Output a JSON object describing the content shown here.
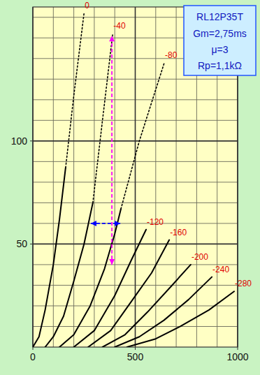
{
  "chart_data": {
    "type": "line",
    "title": "RL12P35T",
    "subtitle": [
      "Gm=2,75ms",
      "μ=3",
      "Rp=1,1kΩ"
    ],
    "xlim": [
      0,
      1000
    ],
    "ylim": [
      0,
      165
    ],
    "xticks": [
      0,
      500,
      1000
    ],
    "yticks": [
      50,
      100
    ],
    "x_minor_ticks": [
      100,
      200,
      300,
      400,
      600,
      700,
      800,
      900
    ],
    "y_minor_ticks": [
      10,
      20,
      30,
      40,
      60,
      70,
      80,
      90,
      110,
      120,
      130,
      140,
      150,
      160
    ],
    "grid": true,
    "series": [
      {
        "name": "0",
        "color": "#000000",
        "line_style": "solid",
        "x": [
          0,
          30,
          60,
          100,
          130,
          160
        ],
        "values": [
          0,
          5,
          18,
          40,
          62,
          87
        ],
        "extension": {
          "line_style": "dotted",
          "x": [
            160,
            200,
            250
          ],
          "values": [
            87,
            122,
            162
          ]
        }
      },
      {
        "name": "-40",
        "color": "#000000",
        "line_style": "solid",
        "x": [
          60,
          100,
          150,
          200,
          250,
          293
        ],
        "values": [
          0,
          5,
          15,
          32,
          50,
          70
        ],
        "extension": {
          "line_style": "dotted",
          "x": [
            293,
            340,
            390
          ],
          "values": [
            70,
            110,
            152
          ]
        }
      },
      {
        "name": "-80",
        "color": "#000000",
        "line_style": "solid",
        "x": [
          130,
          200,
          280,
          350,
          400,
          430
        ],
        "values": [
          0,
          6,
          20,
          38,
          55,
          67
        ],
        "extension": {
          "line_style": "dotted",
          "x": [
            430,
            520,
            642
          ],
          "values": [
            67,
            100,
            138
          ]
        }
      },
      {
        "name": "-120",
        "color": "#000000",
        "line_style": "solid",
        "x": [
          200,
          300,
          400,
          480,
          553
        ],
        "values": [
          0,
          8,
          25,
          42,
          57
        ]
      },
      {
        "name": "-160",
        "color": "#000000",
        "line_style": "solid",
        "x": [
          270,
          380,
          480,
          580,
          666
        ],
        "values": [
          0,
          8,
          22,
          36,
          52
        ]
      },
      {
        "name": "-200",
        "color": "#000000",
        "line_style": "solid",
        "x": [
          340,
          450,
          560,
          680,
          771
        ],
        "values": [
          0,
          6,
          17,
          30,
          40
        ]
      },
      {
        "name": "-240",
        "color": "#000000",
        "line_style": "solid",
        "x": [
          400,
          520,
          640,
          760,
          874
        ],
        "values": [
          0,
          5,
          13,
          23,
          34
        ]
      },
      {
        "name": "-280",
        "color": "#000000",
        "line_style": "solid",
        "x": [
          460,
          600,
          720,
          860,
          983
        ],
        "values": [
          0,
          4,
          10,
          18,
          27
        ]
      }
    ],
    "annotations": [
      {
        "color": "#ff00ff",
        "line_style": "dashed",
        "x": [
          386,
          386
        ],
        "y": [
          40,
          151
        ]
      },
      {
        "color": "#0000ff",
        "line_style": "dashed",
        "x": [
          283,
          427
        ],
        "y": [
          60,
          60
        ]
      }
    ]
  }
}
